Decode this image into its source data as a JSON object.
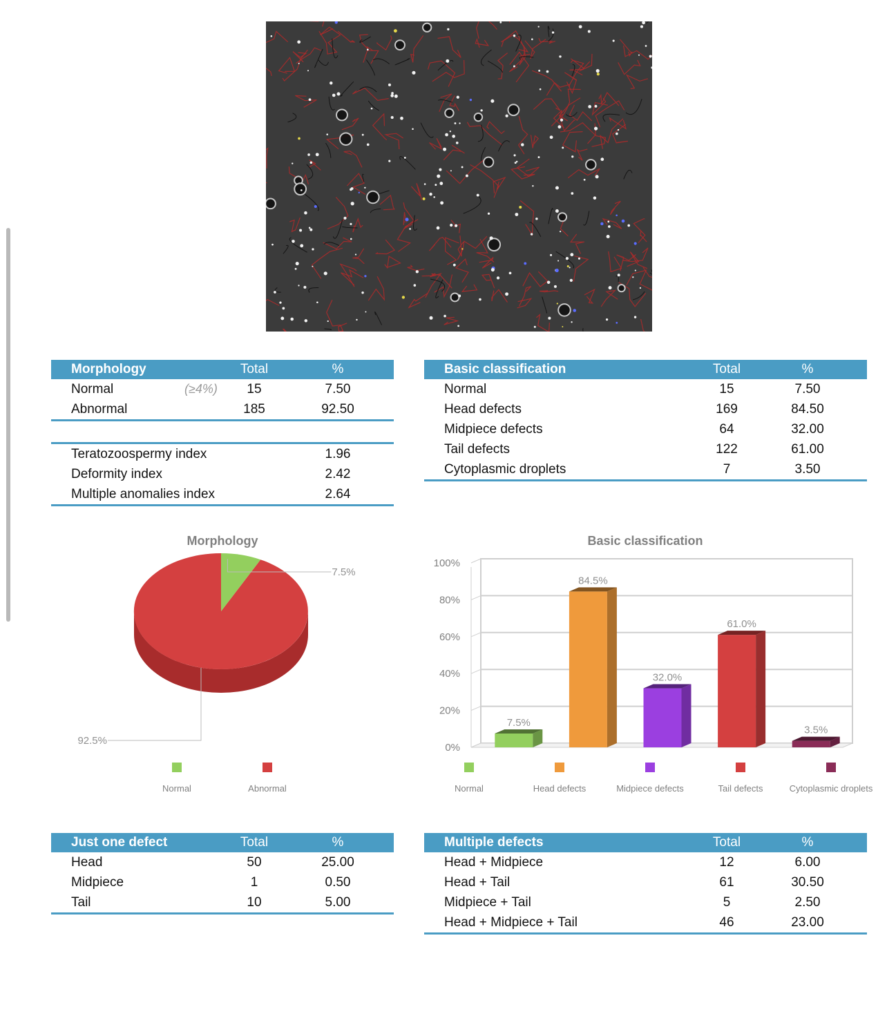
{
  "colors": {
    "header": "#4a9cc4",
    "normal": "#93cf5e",
    "abnormal": "#d44040",
    "head_defects": "#ef9a3c",
    "midpiece_defects": "#9b3fe0",
    "tail_defects": "#d44040",
    "cytoplasmic_droplets": "#8a2c57"
  },
  "morphology_table": {
    "headers": [
      "Morphology",
      "Total",
      "%"
    ],
    "rows": [
      {
        "label": "Normal",
        "hint": "(≥4%)",
        "total": "15",
        "pct": "7.50"
      },
      {
        "label": "Abnormal",
        "hint": "",
        "total": "185",
        "pct": "92.50"
      }
    ]
  },
  "indices_table": {
    "rows": [
      {
        "label": "Teratozoospermy index",
        "value": "1.96"
      },
      {
        "label": "Deformity index",
        "value": "2.42"
      },
      {
        "label": "Multiple anomalies index",
        "value": "2.64"
      }
    ]
  },
  "basic_table": {
    "headers": [
      "Basic classification",
      "Total",
      "%"
    ],
    "rows": [
      {
        "label": "Normal",
        "total": "15",
        "pct": "7.50"
      },
      {
        "label": "Head defects",
        "total": "169",
        "pct": "84.50"
      },
      {
        "label": "Midpiece defects",
        "total": "64",
        "pct": "32.00"
      },
      {
        "label": "Tail defects",
        "total": "122",
        "pct": "61.00"
      },
      {
        "label": "Cytoplasmic droplets",
        "total": "7",
        "pct": "3.50"
      }
    ]
  },
  "one_defect_table": {
    "headers": [
      "Just one defect",
      "Total",
      "%"
    ],
    "rows": [
      {
        "label": "Head",
        "total": "50",
        "pct": "25.00"
      },
      {
        "label": "Midpiece",
        "total": "1",
        "pct": "0.50"
      },
      {
        "label": "Tail",
        "total": "10",
        "pct": "5.00"
      }
    ]
  },
  "multiple_defects_table": {
    "headers": [
      "Multiple defects",
      "Total",
      "%"
    ],
    "rows": [
      {
        "label": "Head + Midpiece",
        "total": "12",
        "pct": "6.00"
      },
      {
        "label": "Head + Tail",
        "total": "61",
        "pct": "30.50"
      },
      {
        "label": "Midpiece + Tail",
        "total": "5",
        "pct": "2.50"
      },
      {
        "label": "Head + Midpiece + Tail",
        "total": "46",
        "pct": "23.00"
      }
    ]
  },
  "chart_data": [
    {
      "type": "pie",
      "title": "Morphology",
      "categories": [
        "Normal",
        "Abnormal"
      ],
      "values": [
        7.5,
        92.5
      ],
      "labels": [
        "7.5%",
        "92.5%"
      ],
      "legend_position": "bottom"
    },
    {
      "type": "bar",
      "title": "Basic classification",
      "categories": [
        "Normal",
        "Head defects",
        "Midpiece defects",
        "Tail defects",
        "Cytoplasmic droplets"
      ],
      "values": [
        7.5,
        84.5,
        32.0,
        61.0,
        3.5
      ],
      "labels": [
        "7.5%",
        "84.5%",
        "32.0%",
        "61.0%",
        "3.5%"
      ],
      "yticks": [
        "0%",
        "20%",
        "40%",
        "60%",
        "80%",
        "100%"
      ],
      "ylim": [
        0,
        100
      ],
      "grid": true,
      "legend_position": "bottom"
    }
  ]
}
